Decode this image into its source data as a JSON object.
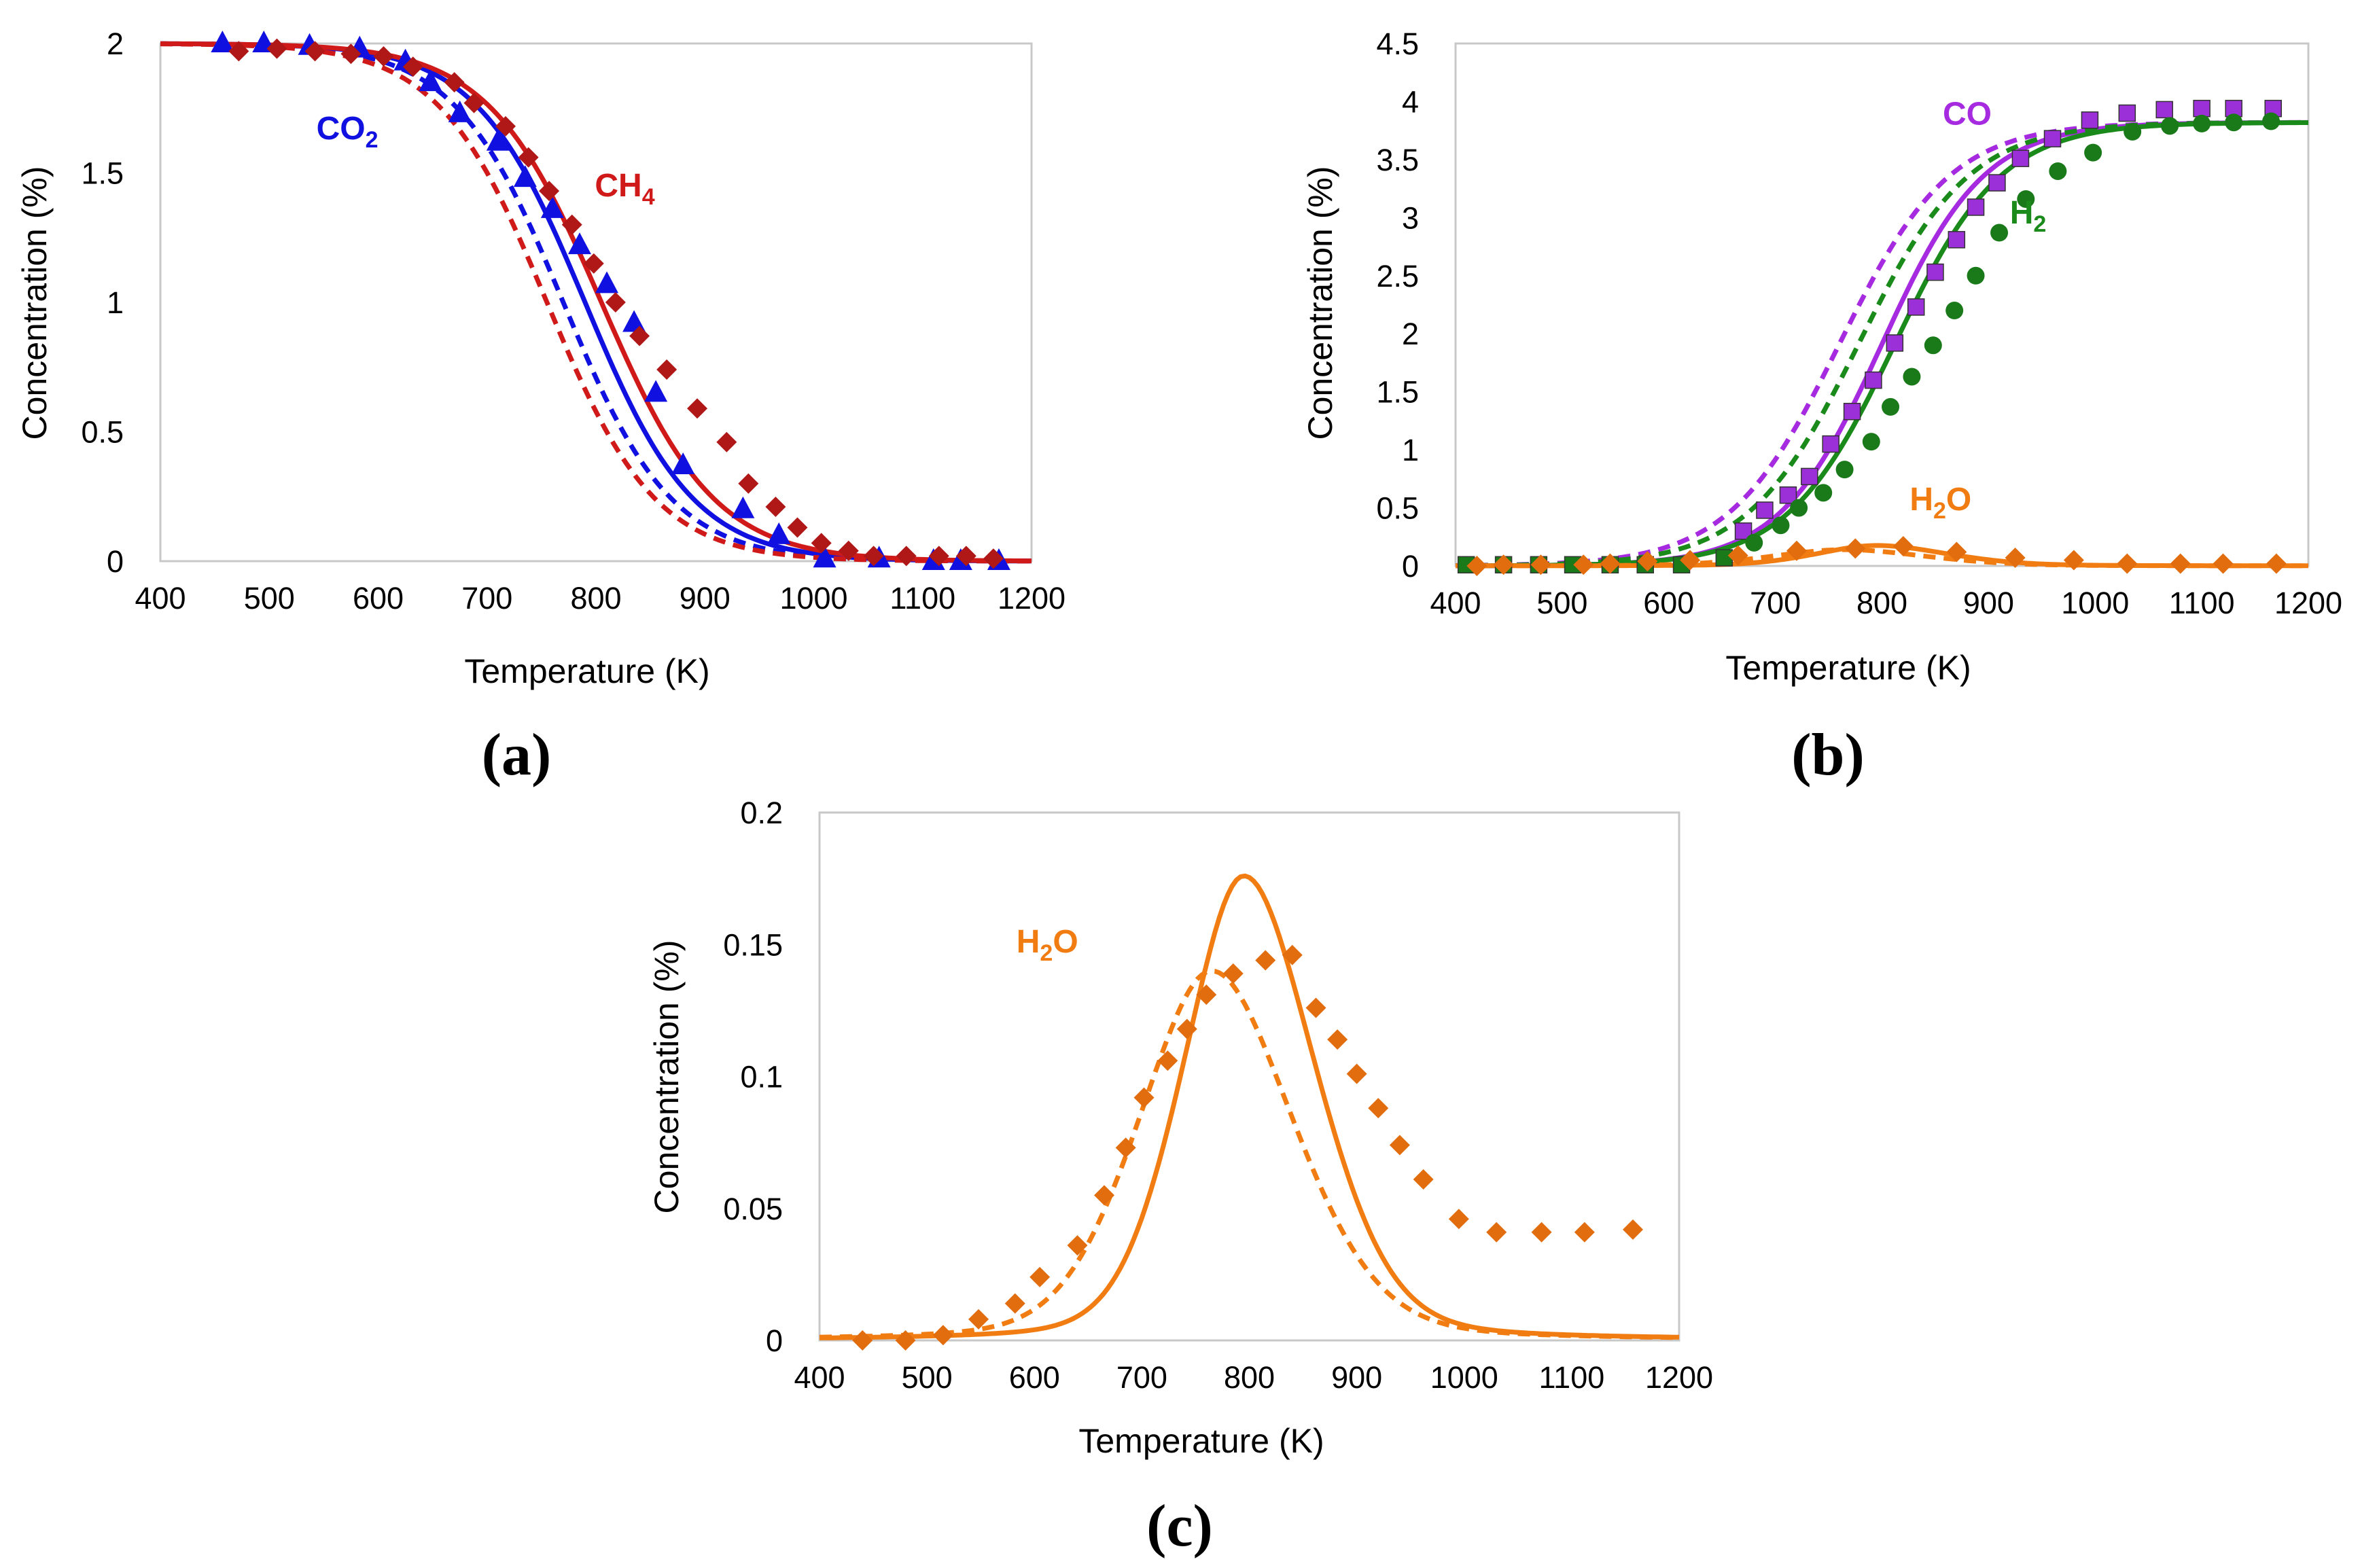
{
  "colors": {
    "blue": "#1010e0",
    "red": "#d01a1a",
    "red_marker": "#b01818",
    "purple": "#a52ae0",
    "purple_marker": "#9b30d8",
    "green": "#1a8a1a",
    "green_marker": "#1a7a1a",
    "orange": "#f07c12",
    "orange_marker": "#e26d0e"
  },
  "chart_data": [
    {
      "type": "line",
      "panel": "(a)",
      "xlabel": "Temperature (K)",
      "ylabel": "Concentration (%)",
      "xlim": [
        400,
        1200
      ],
      "ylim": [
        0,
        2
      ],
      "xticks": [
        "400",
        "500",
        "600",
        "700",
        "800",
        "900",
        "1000",
        "1100",
        "1200"
      ],
      "yticks": [
        "0",
        "0.5",
        "1",
        "1.5",
        "2"
      ],
      "annotations": [
        {
          "base": "CO",
          "sub": "2",
          "color": "blue",
          "x": 600,
          "y": 1.63,
          "anchor": "end"
        },
        {
          "base": "CH",
          "sub": "4",
          "color": "red",
          "x": 799,
          "y": 1.41,
          "anchor": "start"
        }
      ],
      "series": [
        {
          "name": "CO2 model (solid)",
          "color": "blue",
          "style": "solid",
          "curve": "sigmoid",
          "params": {
            "A": 2,
            "T0": 790,
            "w": 50
          }
        },
        {
          "name": "CO2 model (dashed)",
          "color": "blue",
          "style": "dashed",
          "curve": "sigmoid",
          "params": {
            "A": 2,
            "T0": 770,
            "w": 50
          }
        },
        {
          "name": "CH4 model (solid)",
          "color": "red",
          "style": "solid",
          "curve": "sigmoid",
          "params": {
            "A": 2,
            "T0": 805,
            "w": 52
          }
        },
        {
          "name": "CH4 model (dashed)",
          "color": "red",
          "style": "dashed",
          "curve": "sigmoid",
          "params": {
            "A": 2,
            "T0": 755,
            "w": 50
          }
        },
        {
          "name": "CO2 data",
          "color": "blue",
          "marker": "triangle",
          "x": [
            457,
            495,
            537,
            583,
            625,
            648,
            675,
            710,
            735,
            760,
            785,
            810,
            835,
            855,
            880,
            935,
            968,
            1010,
            1060,
            1110,
            1135,
            1170
          ],
          "y": [
            2.0,
            2.0,
            1.99,
            1.98,
            1.93,
            1.85,
            1.73,
            1.62,
            1.48,
            1.36,
            1.22,
            1.07,
            0.92,
            0.65,
            0.37,
            0.2,
            0.1,
            0.01,
            0.01,
            0.0,
            0.0,
            0.0
          ]
        },
        {
          "name": "CH4 data",
          "color": "red_marker",
          "marker": "diamond",
          "x": [
            472,
            507,
            542,
            575,
            605,
            632,
            670,
            688,
            717,
            738,
            757,
            778,
            798,
            818,
            840,
            865,
            893,
            920,
            940,
            965,
            985,
            1007,
            1032,
            1055,
            1085,
            1115,
            1140,
            1165
          ],
          "y": [
            1.97,
            1.98,
            1.97,
            1.96,
            1.95,
            1.91,
            1.85,
            1.77,
            1.68,
            1.56,
            1.43,
            1.3,
            1.15,
            1.0,
            0.87,
            0.74,
            0.59,
            0.46,
            0.3,
            0.21,
            0.13,
            0.07,
            0.04,
            0.02,
            0.02,
            0.02,
            0.02,
            0.01
          ]
        }
      ]
    },
    {
      "type": "line",
      "panel": "(b)",
      "xlabel": "Temperature (K)",
      "ylabel": "Concentration (%)",
      "xlim": [
        400,
        1200
      ],
      "ylim": [
        0,
        4.5
      ],
      "xticks": [
        "400",
        "500",
        "600",
        "700",
        "800",
        "900",
        "1000",
        "1100",
        "1200"
      ],
      "yticks": [
        "0",
        "0.5",
        "1",
        "1.5",
        "2",
        "2.5",
        "3",
        "3.5",
        "4",
        "4.5"
      ],
      "annotations": [
        {
          "base": "CO",
          "sub": "",
          "color": "purple",
          "x": 880,
          "y": 3.8,
          "anchor": "middle"
        },
        {
          "base": "H",
          "sub": "2",
          "color": "green",
          "x": 920,
          "y": 2.95,
          "anchor": "start"
        },
        {
          "base": "H",
          "sub": "2",
          "extra": "O",
          "color": "orange",
          "x": 855,
          "y": 0.48,
          "anchor": "middle"
        }
      ],
      "series": [
        {
          "name": "CO model (solid)",
          "color": "purple",
          "style": "solid",
          "curve": "sigmoid",
          "params": {
            "A": 3.82,
            "T0": 800,
            "w": 48
          }
        },
        {
          "name": "CO model (dashed)",
          "color": "purple",
          "style": "dashed",
          "curve": "sigmoid",
          "params": {
            "A": 3.82,
            "T0": 760,
            "w": 52
          }
        },
        {
          "name": "H2 model (solid)",
          "color": "green",
          "style": "solid",
          "curve": "sigmoid",
          "params": {
            "A": 3.82,
            "T0": 812,
            "w": 50
          }
        },
        {
          "name": "H2 model (dashed)",
          "color": "green",
          "style": "dashed",
          "curve": "sigmoid",
          "params": {
            "A": 3.82,
            "T0": 778,
            "w": 52
          }
        },
        {
          "name": "H2O model (solid)",
          "color": "orange",
          "style": "solid",
          "curve": "peak",
          "params": {
            "A": 0.176,
            "T0": 795,
            "wl": 58,
            "wr": 68,
            "base": 0.0
          }
        },
        {
          "name": "H2O model (dashed)",
          "color": "orange",
          "style": "dashed",
          "curve": "peak",
          "params": {
            "A": 0.14,
            "T0": 765,
            "wl": 70,
            "wr": 78,
            "base": 0.0
          }
        },
        {
          "name": "CO data",
          "color": "purple_marker",
          "marker": "square",
          "x": [
            670,
            690,
            712,
            732,
            752,
            772,
            792,
            812,
            832,
            850,
            870,
            888,
            908,
            930,
            960,
            995,
            1030,
            1065,
            1100,
            1130,
            1167
          ],
          "y": [
            0.3,
            0.48,
            0.61,
            0.77,
            1.05,
            1.33,
            1.6,
            1.92,
            2.23,
            2.53,
            2.81,
            3.09,
            3.3,
            3.51,
            3.68,
            3.84,
            3.9,
            3.93,
            3.94,
            3.94,
            3.94
          ]
        },
        {
          "name": "H2 data",
          "color": "green_marker",
          "marker": "circle",
          "x": [
            680,
            705,
            722,
            745,
            765,
            790,
            808,
            828,
            848,
            868,
            888,
            910,
            935,
            965,
            998,
            1035,
            1070,
            1100,
            1130,
            1165
          ],
          "y": [
            0.2,
            0.35,
            0.5,
            0.63,
            0.83,
            1.07,
            1.37,
            1.63,
            1.9,
            2.2,
            2.5,
            2.87,
            3.16,
            3.4,
            3.56,
            3.74,
            3.79,
            3.81,
            3.82,
            3.83
          ]
        },
        {
          "name": "Data series (green squares)",
          "color": "green_marker",
          "marker": "square",
          "x": [
            410,
            445,
            478,
            510,
            545,
            578,
            612,
            652
          ],
          "y": [
            0.01,
            0.01,
            0.01,
            0.01,
            0.01,
            0.01,
            0.01,
            0.07
          ]
        },
        {
          "name": "H2O data",
          "color": "orange_marker",
          "marker": "diamond",
          "x": [
            420,
            445,
            480,
            520,
            545,
            580,
            620,
            665,
            720,
            775,
            820,
            870,
            925,
            980,
            1030,
            1080,
            1120,
            1170
          ],
          "y": [
            0.0,
            0.01,
            0.01,
            0.01,
            0.02,
            0.04,
            0.05,
            0.09,
            0.13,
            0.15,
            0.17,
            0.12,
            0.07,
            0.05,
            0.02,
            0.02,
            0.02,
            0.02
          ]
        }
      ]
    },
    {
      "type": "line",
      "panel": "(c)",
      "xlabel": "Temperature (K)",
      "ylabel": "Concentration (%)",
      "xlim": [
        400,
        1200
      ],
      "ylim": [
        0,
        0.2
      ],
      "xticks": [
        "400",
        "500",
        "600",
        "700",
        "800",
        "900",
        "1000",
        "1100",
        "1200"
      ],
      "yticks": [
        "0",
        "0.05",
        "0.1",
        "0.15",
        "0.2"
      ],
      "annotations": [
        {
          "base": "H",
          "sub": "2",
          "extra": "O",
          "color": "orange",
          "x": 612,
          "y": 0.147,
          "anchor": "middle"
        }
      ],
      "series": [
        {
          "name": "H2O model (solid)",
          "color": "orange",
          "style": "solid",
          "curve": "peak",
          "params": {
            "A": 0.176,
            "T0": 795,
            "wl": 58,
            "wr": 68,
            "base": 0.0
          }
        },
        {
          "name": "H2O model (dashed)",
          "color": "orange",
          "style": "dashed",
          "curve": "peak",
          "params": {
            "A": 0.14,
            "T0": 765,
            "wl": 70,
            "wr": 78,
            "base": 0.0
          }
        },
        {
          "name": "H2O data",
          "color": "orange_marker",
          "marker": "diamond",
          "x": [
            440,
            480,
            515,
            548,
            582,
            605,
            640,
            665,
            685,
            702,
            724,
            742,
            760,
            785,
            815,
            840,
            862,
            882,
            900,
            920,
            940,
            962,
            995,
            1030,
            1072,
            1112,
            1157
          ],
          "y": [
            0.0,
            0.0,
            0.002,
            0.008,
            0.014,
            0.024,
            0.036,
            0.055,
            0.073,
            0.092,
            0.106,
            0.118,
            0.131,
            0.139,
            0.144,
            0.146,
            0.126,
            0.114,
            0.101,
            0.088,
            0.074,
            0.061,
            0.046,
            0.041,
            0.041,
            0.041,
            0.042
          ]
        }
      ]
    }
  ]
}
